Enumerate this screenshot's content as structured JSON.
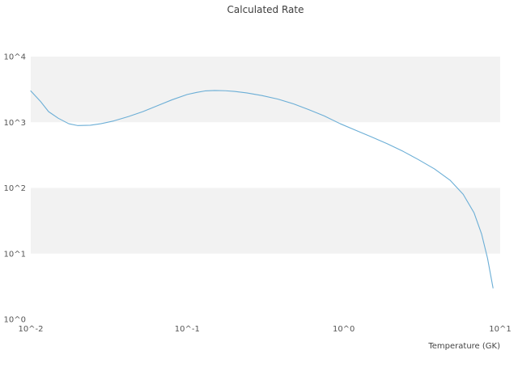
{
  "colors": {
    "background": "#ffffff",
    "band": "#f2f2f2",
    "line": "#6baed6",
    "title_text": "#3d3d3d",
    "tick_text": "#555555"
  },
  "chart_data": {
    "type": "line",
    "title": "Calculated Rate",
    "xlabel": "Temperature (GK)",
    "ylabel": "",
    "xscale": "log",
    "yscale": "log",
    "xlim": [
      0.01,
      10
    ],
    "ylim": [
      1,
      10000
    ],
    "grid": "horizontal-alternating-bands",
    "legend_position": "none",
    "x_ticks": [
      {
        "value": 0.01,
        "label": "10^-2"
      },
      {
        "value": 0.1,
        "label": "10^-1"
      },
      {
        "value": 1,
        "label": "10^0"
      },
      {
        "value": 10,
        "label": "10^1"
      }
    ],
    "y_ticks": [
      {
        "value": 1,
        "label": "10^0"
      },
      {
        "value": 10,
        "label": "10^1"
      },
      {
        "value": 100,
        "label": "10^2"
      },
      {
        "value": 1000,
        "label": "10^3"
      },
      {
        "value": 10000,
        "label": "10^4"
      }
    ],
    "series": [
      {
        "name": "Calculated Rate",
        "color": "#6baed6",
        "x": [
          0.01,
          0.0115,
          0.013,
          0.015,
          0.0175,
          0.02,
          0.024,
          0.028,
          0.034,
          0.042,
          0.052,
          0.065,
          0.08,
          0.1,
          0.115,
          0.13,
          0.15,
          0.175,
          0.2,
          0.24,
          0.3,
          0.38,
          0.48,
          0.6,
          0.75,
          0.95,
          1.2,
          1.5,
          1.9,
          2.4,
          3.0,
          3.8,
          4.8,
          5.8,
          6.8,
          7.6,
          8.3,
          9.0
        ],
        "y": [
          3000,
          2100,
          1450,
          1150,
          950,
          890,
          900,
          950,
          1050,
          1220,
          1450,
          1800,
          2200,
          2650,
          2850,
          3000,
          3050,
          3020,
          2950,
          2800,
          2550,
          2250,
          1900,
          1550,
          1250,
          950,
          750,
          600,
          470,
          360,
          270,
          195,
          130,
          80,
          42,
          20,
          8.5,
          3.0
        ]
      }
    ]
  }
}
